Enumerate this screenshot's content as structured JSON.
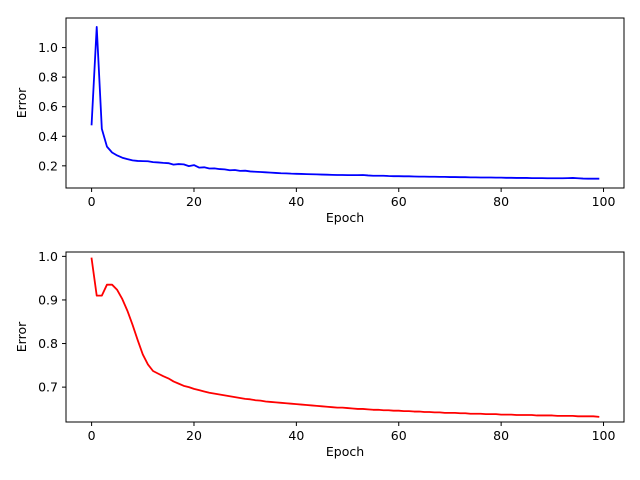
{
  "chart_data": [
    {
      "type": "line",
      "xlabel": "Epoch",
      "ylabel": "Error",
      "xlim": [
        -5,
        104
      ],
      "ylim": [
        0.05,
        1.2
      ],
      "xticks": [
        0,
        20,
        40,
        60,
        80,
        100
      ],
      "yticks": [
        0.2,
        0.4,
        0.6,
        0.8,
        1.0
      ],
      "yticklabels": [
        "0.2",
        "0.4",
        "0.6",
        "0.8",
        "1.0"
      ],
      "grid": false,
      "series": [
        {
          "color": "#0000ff",
          "x": [
            0,
            1,
            2,
            3,
            4,
            5,
            6,
            7,
            8,
            9,
            10,
            11,
            12,
            13,
            14,
            15,
            16,
            17,
            18,
            19,
            20,
            21,
            22,
            23,
            24,
            25,
            26,
            27,
            28,
            29,
            30,
            31,
            32,
            33,
            34,
            35,
            36,
            37,
            38,
            39,
            40,
            41,
            42,
            43,
            44,
            45,
            46,
            47,
            48,
            49,
            50,
            51,
            52,
            53,
            54,
            55,
            56,
            57,
            58,
            59,
            60,
            61,
            62,
            63,
            64,
            65,
            66,
            67,
            68,
            69,
            70,
            71,
            72,
            73,
            74,
            75,
            76,
            77,
            78,
            79,
            80,
            81,
            82,
            83,
            84,
            85,
            86,
            87,
            88,
            89,
            90,
            91,
            92,
            93,
            94,
            95,
            96,
            97,
            98,
            99
          ],
          "y": [
            0.48,
            1.14,
            0.45,
            0.33,
            0.29,
            0.27,
            0.255,
            0.245,
            0.237,
            0.233,
            0.232,
            0.231,
            0.225,
            0.223,
            0.22,
            0.218,
            0.208,
            0.212,
            0.21,
            0.198,
            0.205,
            0.188,
            0.19,
            0.182,
            0.183,
            0.178,
            0.176,
            0.17,
            0.172,
            0.166,
            0.167,
            0.162,
            0.16,
            0.158,
            0.156,
            0.154,
            0.152,
            0.15,
            0.149,
            0.147,
            0.146,
            0.145,
            0.144,
            0.143,
            0.142,
            0.141,
            0.14,
            0.139,
            0.138,
            0.138,
            0.137,
            0.137,
            0.137,
            0.138,
            0.135,
            0.133,
            0.133,
            0.133,
            0.131,
            0.13,
            0.13,
            0.129,
            0.129,
            0.128,
            0.127,
            0.127,
            0.126,
            0.126,
            0.125,
            0.125,
            0.124,
            0.124,
            0.123,
            0.123,
            0.122,
            0.122,
            0.121,
            0.121,
            0.121,
            0.12,
            0.12,
            0.119,
            0.119,
            0.118,
            0.118,
            0.118,
            0.117,
            0.117,
            0.117,
            0.116,
            0.116,
            0.116,
            0.116,
            0.117,
            0.118,
            0.116,
            0.114,
            0.113,
            0.113,
            0.113
          ]
        }
      ]
    },
    {
      "type": "line",
      "xlabel": "Epoch",
      "ylabel": "Error",
      "xlim": [
        -5,
        104
      ],
      "ylim": [
        0.62,
        1.01
      ],
      "xticks": [
        0,
        20,
        40,
        60,
        80,
        100
      ],
      "yticks": [
        0.7,
        0.8,
        0.9,
        1.0
      ],
      "yticklabels": [
        "0.7",
        "0.8",
        "0.9",
        "1.0"
      ],
      "grid": false,
      "series": [
        {
          "color": "#ff0000",
          "x": [
            0,
            1,
            2,
            3,
            4,
            5,
            6,
            7,
            8,
            9,
            10,
            11,
            12,
            13,
            14,
            15,
            16,
            17,
            18,
            19,
            20,
            21,
            22,
            23,
            24,
            25,
            26,
            27,
            28,
            29,
            30,
            31,
            32,
            33,
            34,
            35,
            36,
            37,
            38,
            39,
            40,
            41,
            42,
            43,
            44,
            45,
            46,
            47,
            48,
            49,
            50,
            51,
            52,
            53,
            54,
            55,
            56,
            57,
            58,
            59,
            60,
            61,
            62,
            63,
            64,
            65,
            66,
            67,
            68,
            69,
            70,
            71,
            72,
            73,
            74,
            75,
            76,
            77,
            78,
            79,
            80,
            81,
            82,
            83,
            84,
            85,
            86,
            87,
            88,
            89,
            90,
            91,
            92,
            93,
            94,
            95,
            96,
            97,
            98,
            99
          ],
          "y": [
            0.995,
            0.91,
            0.91,
            0.935,
            0.935,
            0.923,
            0.902,
            0.875,
            0.843,
            0.808,
            0.775,
            0.752,
            0.737,
            0.731,
            0.725,
            0.72,
            0.713,
            0.708,
            0.703,
            0.7,
            0.696,
            0.693,
            0.69,
            0.687,
            0.685,
            0.683,
            0.681,
            0.679,
            0.677,
            0.675,
            0.673,
            0.672,
            0.67,
            0.669,
            0.667,
            0.666,
            0.665,
            0.664,
            0.663,
            0.662,
            0.661,
            0.66,
            0.659,
            0.658,
            0.657,
            0.656,
            0.655,
            0.654,
            0.653,
            0.653,
            0.652,
            0.651,
            0.65,
            0.65,
            0.649,
            0.648,
            0.648,
            0.647,
            0.647,
            0.646,
            0.646,
            0.645,
            0.645,
            0.644,
            0.644,
            0.643,
            0.643,
            0.642,
            0.642,
            0.641,
            0.641,
            0.641,
            0.64,
            0.64,
            0.639,
            0.639,
            0.639,
            0.638,
            0.638,
            0.638,
            0.637,
            0.637,
            0.637,
            0.636,
            0.636,
            0.636,
            0.636,
            0.635,
            0.635,
            0.635,
            0.635,
            0.634,
            0.634,
            0.634,
            0.634,
            0.633,
            0.633,
            0.633,
            0.633,
            0.632
          ]
        }
      ]
    }
  ]
}
